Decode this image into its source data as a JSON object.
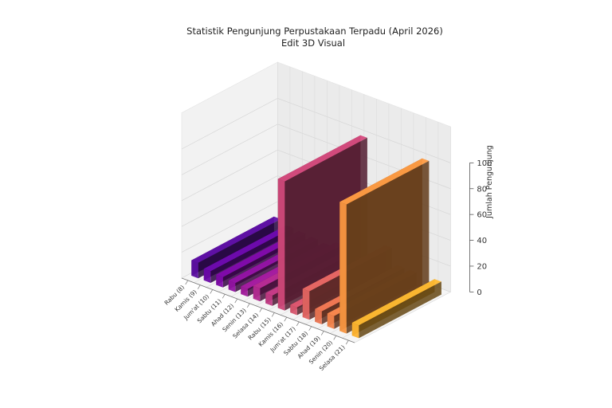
{
  "chart_data": {
    "type": "bar",
    "title": "Statistik Pengunjung Perpustakaan Terpadu (April 2026)",
    "subtitle": "Edit 3D Visual",
    "zlabel": "Jumlah Pengunjung",
    "zlim": [
      0,
      100
    ],
    "zticks": [
      0,
      20,
      40,
      60,
      80,
      100
    ],
    "categories": [
      "Rabu (8)",
      "Kamis (9)",
      "Jum'at (10)",
      "Sabtu (11)",
      "Ahad (12)",
      "Senin (13)",
      "Selasa (14)",
      "Rabu (15)",
      "Kamis (16)",
      "Jum'at (17)",
      "Sabtu (18)",
      "Ahad (19)",
      "Senin (20)",
      "Selasa (21)"
    ],
    "values": [
      12,
      9,
      8,
      7,
      6,
      10,
      8,
      100,
      6,
      22,
      10,
      10,
      100,
      10
    ],
    "colors": [
      "#5b0fa0",
      "#6a0aa8",
      "#7d0aa6",
      "#8f13a0",
      "#a11b9b",
      "#b12a90",
      "#c03a83",
      "#cc4778",
      "#d6556d",
      "#e06461",
      "#e97451",
      "#f1834b",
      "#f79540",
      "#fdb22f"
    ],
    "grid": true
  }
}
